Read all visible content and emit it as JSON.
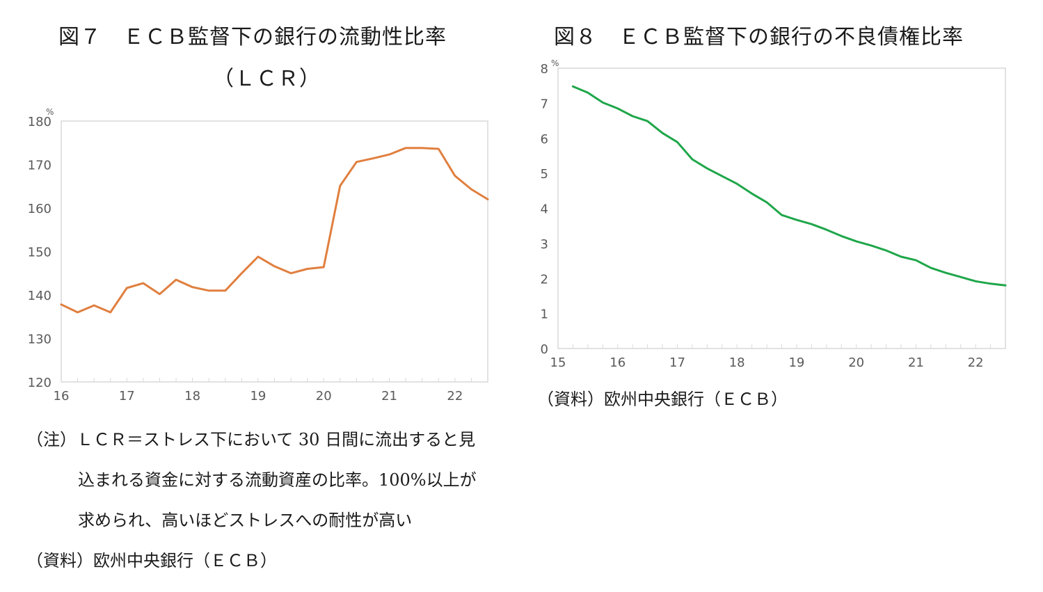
{
  "fig7": {
    "title_line1": "図７　ＥＣＢ監督下の銀行の流動性比率",
    "title_line2": "（ＬＣＲ）",
    "note_line1": "（注）ＬＣＲ＝ストレス下において 30 日間に流出すると見",
    "note_line2": "込まれる資金に対する流動資産の比率。100%以上が",
    "note_line3": "求められ、高いほどストレスへの耐性が高い",
    "source": "（資料）欧州中央銀行（ＥＣＢ）"
  },
  "fig8": {
    "title": "図８　ＥＣＢ監督下の銀行の不良債権比率",
    "source": "（資料）欧州中央銀行（ＥＣＢ）"
  },
  "colors": {
    "lcr_line": "#E07F3F",
    "npl_line": "#1FA64A",
    "axis": "#d9d9d9",
    "tick_text": "#595959"
  },
  "chart_data": [
    {
      "type": "line",
      "title": "図７　ＥＣＢ監督下の銀行の流動性比率（ＬＣＲ）",
      "xlabel": "",
      "ylabel": "%",
      "unit": "%",
      "ylim": [
        120,
        180
      ],
      "yticks": [
        120,
        130,
        140,
        150,
        160,
        170,
        180
      ],
      "xlim": [
        16,
        22.5
      ],
      "xticks": [
        "16",
        "17",
        "18",
        "19",
        "20",
        "21",
        "22"
      ],
      "grid": false,
      "legend": null,
      "x": [
        16.0,
        16.25,
        16.5,
        16.75,
        17.0,
        17.25,
        17.5,
        17.75,
        18.0,
        18.25,
        18.5,
        18.75,
        19.0,
        19.25,
        19.5,
        19.75,
        20.0,
        20.25,
        20.5,
        20.75,
        21.0,
        21.25,
        21.5,
        21.75,
        22.0,
        22.25,
        22.5
      ],
      "series": [
        {
          "name": "LCR",
          "color": "#E07F3F",
          "values": [
            137.8,
            136.0,
            137.6,
            136.0,
            141.6,
            142.7,
            140.2,
            143.5,
            141.8,
            141.0,
            141.0,
            145.0,
            148.8,
            146.6,
            145.0,
            146.0,
            146.4,
            165.1,
            170.6,
            171.4,
            172.3,
            173.8,
            173.8,
            173.6,
            167.4,
            164.3,
            162.0
          ]
        }
      ]
    },
    {
      "type": "line",
      "title": "図８　ＥＣＢ監督下の銀行の不良債権比率",
      "xlabel": "",
      "ylabel": "%",
      "unit": "%",
      "ylim": [
        0,
        8
      ],
      "yticks": [
        0,
        1,
        2,
        3,
        4,
        5,
        6,
        7,
        8
      ],
      "xlim": [
        15,
        22.5
      ],
      "xticks": [
        "15",
        "16",
        "17",
        "18",
        "19",
        "20",
        "21",
        "22"
      ],
      "grid": false,
      "legend": null,
      "x": [
        15.25,
        15.5,
        15.75,
        16.0,
        16.25,
        16.5,
        16.75,
        17.0,
        17.25,
        17.5,
        17.75,
        18.0,
        18.25,
        18.5,
        18.75,
        19.0,
        19.25,
        19.5,
        19.75,
        20.0,
        20.25,
        20.5,
        20.75,
        21.0,
        21.25,
        21.5,
        21.75,
        22.0,
        22.25,
        22.5
      ],
      "series": [
        {
          "name": "NPL ratio",
          "color": "#1FA64A",
          "values": [
            7.48,
            7.3,
            7.02,
            6.85,
            6.63,
            6.49,
            6.15,
            5.89,
            5.4,
            5.14,
            4.92,
            4.7,
            4.42,
            4.17,
            3.81,
            3.67,
            3.55,
            3.39,
            3.21,
            3.06,
            2.94,
            2.8,
            2.62,
            2.52,
            2.3,
            2.16,
            2.04,
            1.92,
            1.85,
            1.8
          ]
        }
      ]
    }
  ]
}
